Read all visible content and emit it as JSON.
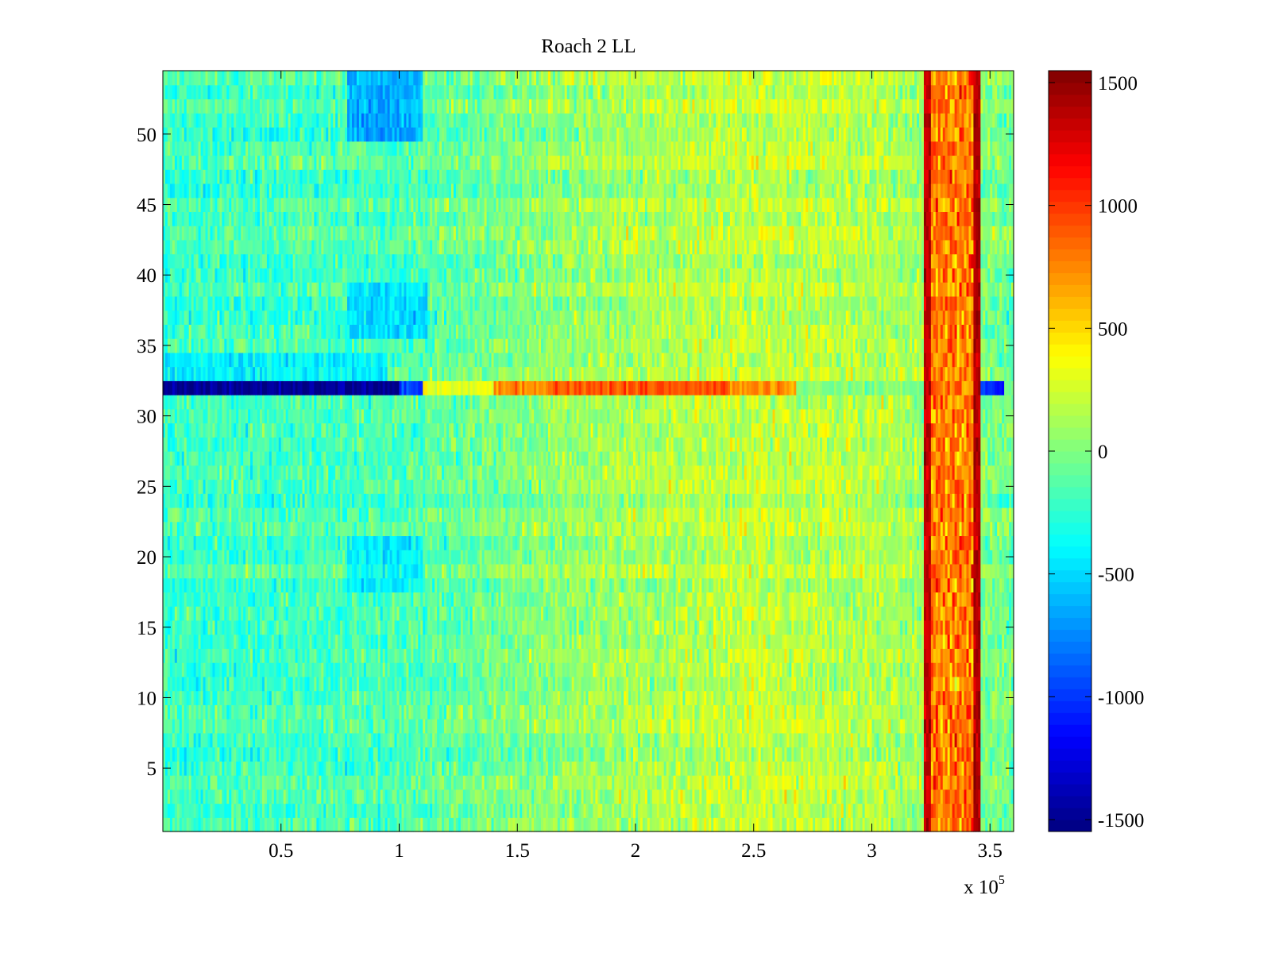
{
  "chart_data": {
    "type": "heatmap",
    "title": "Roach 2 LL",
    "xlabel": "",
    "ylabel": "",
    "xlim": [
      0,
      360000
    ],
    "ylim": [
      0.5,
      54.5
    ],
    "x_exponent_label": "x 10",
    "x_exponent_power": "5",
    "x_ticks": [
      {
        "value": 50000,
        "label": "0.5"
      },
      {
        "value": 100000,
        "label": "1"
      },
      {
        "value": 150000,
        "label": "1.5"
      },
      {
        "value": 200000,
        "label": "2"
      },
      {
        "value": 250000,
        "label": "2.5"
      },
      {
        "value": 300000,
        "label": "3"
      },
      {
        "value": 350000,
        "label": "3.5"
      }
    ],
    "y_ticks": [
      {
        "value": 5,
        "label": "5"
      },
      {
        "value": 10,
        "label": "10"
      },
      {
        "value": 15,
        "label": "15"
      },
      {
        "value": 20,
        "label": "20"
      },
      {
        "value": 25,
        "label": "25"
      },
      {
        "value": 30,
        "label": "30"
      },
      {
        "value": 35,
        "label": "35"
      },
      {
        "value": 40,
        "label": "40"
      },
      {
        "value": 45,
        "label": "45"
      },
      {
        "value": 50,
        "label": "50"
      }
    ],
    "colormap": "jet",
    "clim": [
      -1500,
      1500
    ],
    "colorbar": {
      "ticks": [
        {
          "value": 1500,
          "label": "1500"
        },
        {
          "value": 1000,
          "label": "1000"
        },
        {
          "value": 500,
          "label": "500"
        },
        {
          "value": 0,
          "label": "0"
        },
        {
          "value": -500,
          "label": "-500"
        },
        {
          "value": -1000,
          "label": "-1000"
        },
        {
          "value": -1500,
          "label": "-1500"
        }
      ]
    },
    "rows": 54,
    "columns": 360,
    "features": {
      "background_level": -50,
      "trend": [
        {
          "x": 0,
          "value": -200
        },
        {
          "x": 100000,
          "value": -150
        },
        {
          "x": 150000,
          "value": 0
        },
        {
          "x": 200000,
          "value": 120
        },
        {
          "x": 250000,
          "value": 200
        },
        {
          "x": 300000,
          "value": 150
        },
        {
          "x": 322000,
          "value": 100
        },
        {
          "x": 360000,
          "value": -50
        }
      ],
      "hot_band": {
        "x_start": 322000,
        "x_end": 346000,
        "value": 1000
      },
      "hot_band_edges": [
        {
          "x": 323000,
          "value": 1300
        },
        {
          "x": 345000,
          "value": 1350
        }
      ],
      "row_32": [
        {
          "x_start": 0,
          "x_end": 100000,
          "value": -1450
        },
        {
          "x_start": 100000,
          "x_end": 110000,
          "value": -900
        },
        {
          "x_start": 110000,
          "x_end": 140000,
          "value": 300
        },
        {
          "x_start": 140000,
          "x_end": 165000,
          "value": 700
        },
        {
          "x_start": 165000,
          "x_end": 240000,
          "value": 900
        },
        {
          "x_start": 240000,
          "x_end": 268000,
          "value": 700
        },
        {
          "x_start": 268000,
          "x_end": 322000,
          "value": 0
        },
        {
          "x_start": 346000,
          "x_end": 356000,
          "value": -1000
        }
      ],
      "cold_patches": [
        {
          "x_start": 78000,
          "x_end": 110000,
          "y_start": 50,
          "y_end": 54,
          "value": -800
        },
        {
          "x_start": 78000,
          "x_end": 112000,
          "y_start": 36,
          "y_end": 39,
          "value": -600
        },
        {
          "x_start": 78000,
          "x_end": 110000,
          "y_start": 18,
          "y_end": 21,
          "value": -500
        },
        {
          "x_start": 0,
          "x_end": 95000,
          "y_start": 33,
          "y_end": 34,
          "value": -500
        }
      ]
    }
  }
}
